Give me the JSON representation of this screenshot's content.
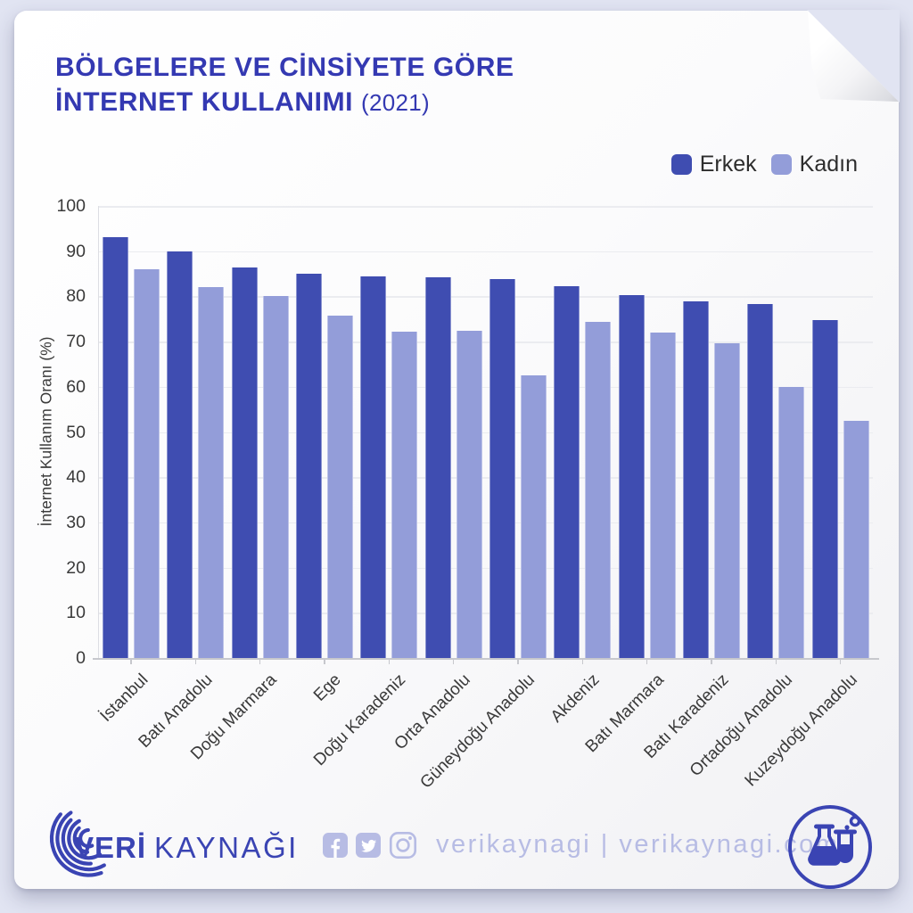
{
  "title": {
    "line1": "BÖLGELERE VE CİNSİYETE GÖRE",
    "line2": "İNTERNET KULLANIMI",
    "year": "(2021)"
  },
  "chart_data": {
    "type": "bar",
    "title": "BÖLGELERE VE CİNSİYETE GÖRE İNTERNET KULLANIMI (2021)",
    "categories": [
      "İstanbul",
      "Batı Anadolu",
      "Doğu Marmara",
      "Ege",
      "Doğu Karadeniz",
      "Orta Anadolu",
      "Güneydoğu Anadolu",
      "Akdeniz",
      "Batı Marmara",
      "Batı Karadeniz",
      "Ortadoğu Anadolu",
      "Kuzeydoğu Anadolu"
    ],
    "series": [
      {
        "name": "Erkek",
        "color": "#3f4db1",
        "values": [
          93.0,
          90.0,
          86.4,
          85.0,
          84.5,
          84.3,
          83.8,
          82.3,
          80.3,
          78.9,
          78.3,
          74.8
        ]
      },
      {
        "name": "Kadın",
        "color": "#939dd9",
        "values": [
          86.0,
          82.0,
          80.1,
          75.8,
          72.1,
          72.3,
          62.5,
          74.3,
          72.0,
          69.6,
          60.0,
          52.4
        ]
      }
    ],
    "xlabel": "",
    "ylabel": "İnternet Kullanım Oranı (%)",
    "ylim": [
      0,
      100
    ],
    "yticks": [
      0,
      10,
      20,
      30,
      40,
      50,
      60,
      70,
      80,
      90,
      100
    ],
    "grid": true,
    "legend_position": "top-right"
  },
  "footer": {
    "logo_word1": "VERİ",
    "logo_word2": "KAYNAĞI",
    "handle_text": "verikaynagi | verikaynagi.com",
    "social_icons": [
      "facebook-icon",
      "twitter-icon",
      "instagram-icon"
    ],
    "badge_icon": "flask-icon"
  },
  "colors": {
    "page_bg": "#e1e4f2",
    "accent": "#3a44b3",
    "title": "#3439b2",
    "bar_dark": "#3f4db1",
    "bar_light": "#939dd9",
    "muted": "#b7bce4"
  }
}
